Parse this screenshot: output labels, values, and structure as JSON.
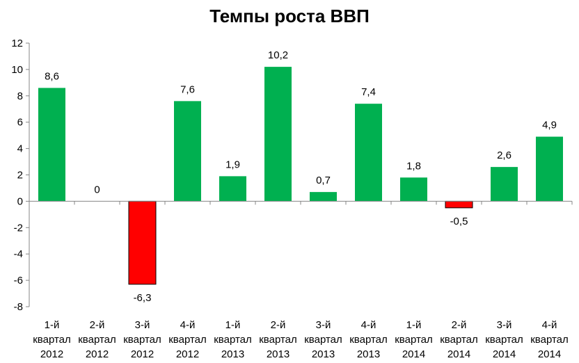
{
  "chart_data": {
    "type": "bar",
    "title": "Темпы роста ВВП",
    "xlabel": "",
    "ylabel": "",
    "ylim": [
      -8,
      12
    ],
    "yticks": [
      12,
      10,
      8,
      6,
      4,
      2,
      0,
      -2,
      -4,
      -6,
      -8
    ],
    "grid": false,
    "legend": "none",
    "categories": [
      [
        "1-й",
        "квартал",
        "2012"
      ],
      [
        "2-й",
        "квартал",
        "2012"
      ],
      [
        "3-й",
        "квартал",
        "2012"
      ],
      [
        "4-й",
        "квартал",
        "2012"
      ],
      [
        "1-й",
        "квартал",
        "2013"
      ],
      [
        "2-й",
        "квартал",
        "2013"
      ],
      [
        "3-й",
        "квартал",
        "2013"
      ],
      [
        "4-й",
        "квартал",
        "2013"
      ],
      [
        "1-й",
        "квартал",
        "2014"
      ],
      [
        "2-й",
        "квартал",
        "2014"
      ],
      [
        "3-й",
        "квартал",
        "2014"
      ],
      [
        "4-й",
        "квартал",
        "2014"
      ]
    ],
    "values": [
      8.6,
      0,
      -6.3,
      7.6,
      1.9,
      10.2,
      0.7,
      7.4,
      1.8,
      -0.5,
      2.6,
      4.9
    ],
    "data_labels": [
      "8,6",
      "0",
      "-6,3",
      "7,6",
      "1,9",
      "10,2",
      "0,7",
      "7,4",
      "1,8",
      "-0,5",
      "2,6",
      "4,9"
    ],
    "colors": {
      "positive": "#00b050",
      "negative": "#ff0000",
      "axis": "#868686"
    }
  }
}
